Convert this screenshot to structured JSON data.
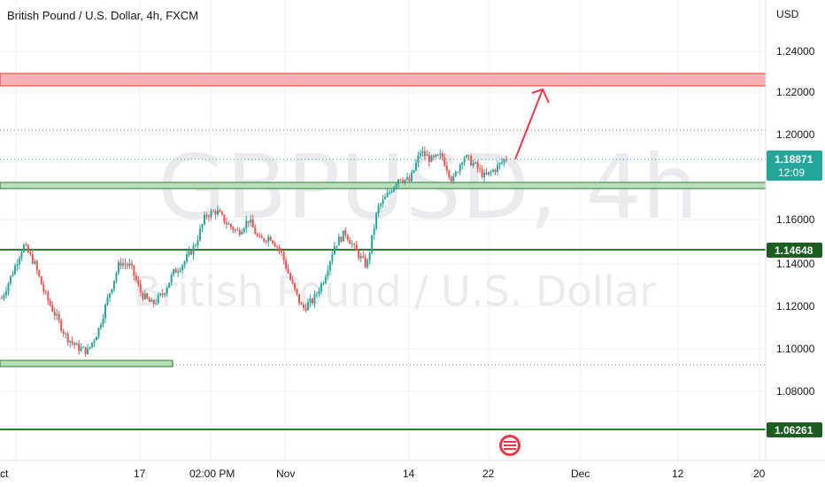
{
  "legend": {
    "title": "British Pound / U.S. Dollar, 4h, FXCM"
  },
  "watermark": {
    "symbol": "GBPUSD, 4h",
    "name": "British Pound / U.S. Dollar"
  },
  "price_axis": {
    "currency": "USD",
    "ticks": [
      "1.24000",
      "1.22000",
      "1.20000",
      "1.16000",
      "1.14000",
      "1.12000",
      "1.10000",
      "1.08000"
    ]
  },
  "time_axis": {
    "ticks": [
      "ct",
      "17",
      "02:00 PM",
      "Nov",
      "14",
      "22",
      "Dec",
      "12",
      "20"
    ]
  },
  "price_labels": {
    "last_price": "1.18871",
    "countdown": "12:09",
    "level_1": "1.14648",
    "level_2": "1.06261"
  },
  "colors": {
    "up": "#26a69a",
    "down": "#ef5350",
    "support": "#2e7d32",
    "resistance_zone": "#f7b4b8",
    "resistance_line": "#e53935",
    "arrow": "#f23645",
    "tag_green": "#1b5e20"
  },
  "chart_data": {
    "type": "candlestick",
    "symbol": "GBPUSD",
    "interval": "4h",
    "ylim": [
      1.06,
      1.25
    ],
    "approx_path": [
      1.123,
      1.135,
      1.148,
      1.14,
      1.125,
      1.115,
      1.105,
      1.1,
      1.098,
      1.108,
      1.125,
      1.14,
      1.138,
      1.125,
      1.12,
      1.125,
      1.135,
      1.14,
      1.148,
      1.162,
      1.164,
      1.158,
      1.154,
      1.16,
      1.15,
      1.152,
      1.145,
      1.13,
      1.118,
      1.122,
      1.132,
      1.148,
      1.154,
      1.145,
      1.138,
      1.165,
      1.172,
      1.18,
      1.178,
      1.192,
      1.188,
      1.19,
      1.178,
      1.19,
      1.186,
      1.18,
      1.184,
      1.189
    ]
  },
  "annotations": {
    "resistance_zone": [
      1.224,
      1.23
    ],
    "support_zone_upper": [
      1.174,
      1.178
    ],
    "support_zone_lower": [
      1.091,
      1.095
    ],
    "support_line_1": 1.14648,
    "support_line_2": 1.06261
  }
}
